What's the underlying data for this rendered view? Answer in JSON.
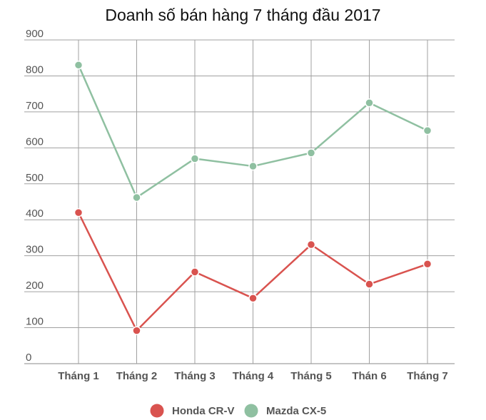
{
  "chart_data": {
    "type": "line",
    "title": "Doanh số bán hàng 7 tháng đầu 2017",
    "categories": [
      "Tháng 1",
      "Tháng 2",
      "Tháng 3",
      "Tháng 4",
      "Tháng 5",
      "Thán 6",
      "Tháng 7"
    ],
    "series": [
      {
        "name": "Honda CR-V",
        "color": "#d9534f",
        "values": [
          420,
          92,
          255,
          182,
          331,
          221,
          277
        ]
      },
      {
        "name": "Mazda CX-5",
        "color": "#8fc0a1",
        "values": [
          830,
          462,
          570,
          549,
          586,
          725,
          648
        ]
      }
    ],
    "yticks": [
      "0",
      "100",
      "200",
      "300",
      "400",
      "500",
      "600",
      "700",
      "800",
      "900"
    ],
    "ylim": [
      0,
      900
    ],
    "grid": true,
    "legend": "bottom"
  }
}
